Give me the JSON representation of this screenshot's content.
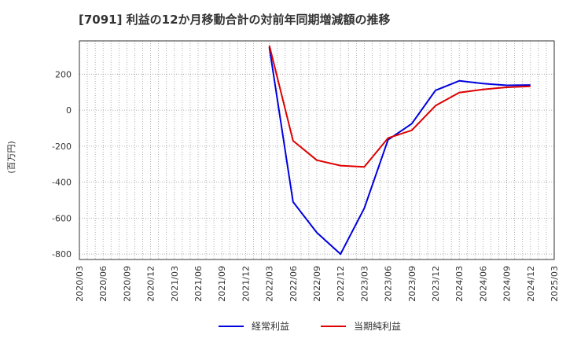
{
  "chart_data": {
    "type": "line",
    "title": "[7091]  利益の12か月移動合計の対前年同期増減額の推移",
    "ylabel": "(百万円)",
    "xlabel": "",
    "ylim": [
      -830,
      385
    ],
    "yticks": [
      200,
      0,
      -200,
      -400,
      -600,
      -800
    ],
    "x_ticks": [
      "2020/03",
      "2020/06",
      "2020/09",
      "2020/12",
      "2021/03",
      "2021/06",
      "2021/09",
      "2021/12",
      "2022/03",
      "2022/06",
      "2022/09",
      "2022/12",
      "2023/03",
      "2023/06",
      "2023/09",
      "2023/12",
      "2024/03",
      "2024/06",
      "2024/09",
      "2024/12",
      "2025/03"
    ],
    "grid": true,
    "legend_position": "bottom",
    "series": [
      {
        "name": "経常利益",
        "color": "#0000dd",
        "x": [
          "2022/03",
          "2022/06",
          "2022/09",
          "2022/12",
          "2023/03",
          "2023/06",
          "2023/09",
          "2023/12",
          "2024/03",
          "2024/06",
          "2024/09",
          "2024/12"
        ],
        "values": [
          350,
          -510,
          -680,
          -800,
          -545,
          -165,
          -75,
          110,
          163,
          148,
          138,
          140
        ]
      },
      {
        "name": "当期純利益",
        "color": "#dd0000",
        "x": [
          "2022/03",
          "2022/06",
          "2022/09",
          "2022/12",
          "2023/03",
          "2023/06",
          "2023/09",
          "2023/12",
          "2024/03",
          "2024/06",
          "2024/09",
          "2024/12"
        ],
        "values": [
          360,
          -170,
          -278,
          -308,
          -315,
          -155,
          -112,
          25,
          98,
          115,
          127,
          133
        ]
      }
    ]
  }
}
